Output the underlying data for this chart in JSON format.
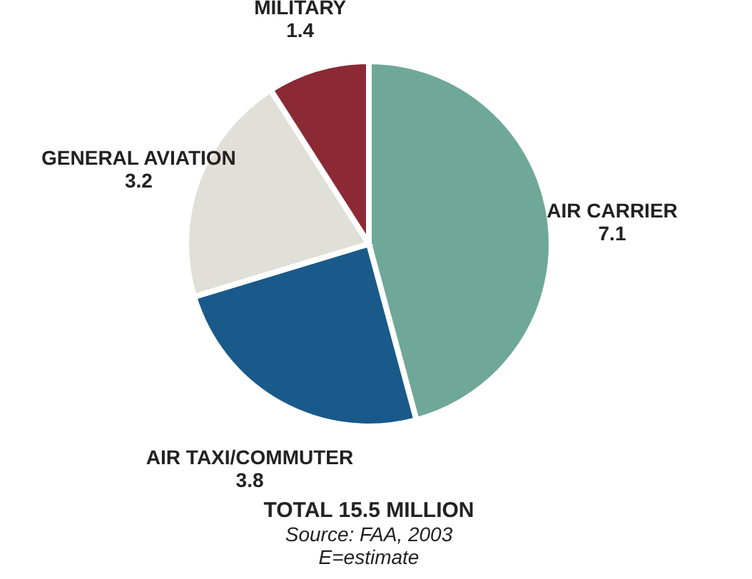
{
  "chart_data": {
    "type": "pie",
    "categories": [
      "AIR CARRIER",
      "AIR TAXI/COMMUTER",
      "GENERAL AVIATION",
      "MILITARY"
    ],
    "values": [
      7.1,
      3.8,
      3.2,
      1.4
    ],
    "colors": [
      "#6fa898",
      "#1a5a8a",
      "#e0dfd8",
      "#8b2a35"
    ],
    "data_labels": true,
    "legend": false,
    "annotations": [
      "TOTAL 15.5 MILLION",
      "Source: FAA, 2003",
      "E=estimate"
    ]
  }
}
